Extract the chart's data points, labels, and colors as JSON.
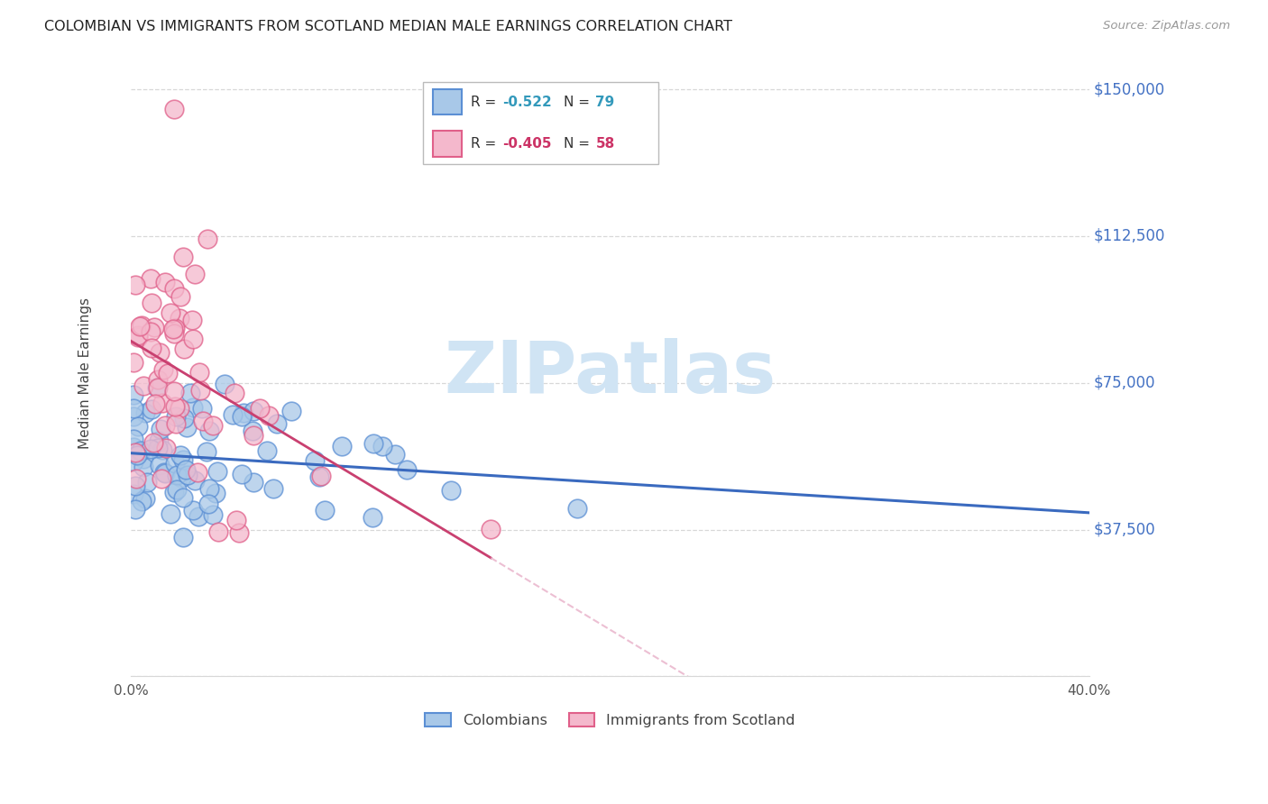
{
  "title": "COLOMBIAN VS IMMIGRANTS FROM SCOTLAND MEDIAN MALE EARNINGS CORRELATION CHART",
  "source": "Source: ZipAtlas.com",
  "ylabel": "Median Male Earnings",
  "R_colombian": -0.522,
  "N_colombian": 79,
  "R_scotland": -0.405,
  "N_scotland": 58,
  "blue_color": "#a8c8e8",
  "blue_edge": "#5b8fd4",
  "pink_color": "#f4b8cc",
  "pink_edge": "#e0608a",
  "trend_blue": "#3a6abf",
  "trend_pink": "#c94070",
  "trend_pink_dash_color": "#e8b0c8",
  "watermark_color": "#d0e4f4",
  "ytick_color": "#4472c4",
  "title_color": "#222222",
  "source_color": "#999999",
  "grid_color": "#d8d8d8",
  "xlim": [
    0.0,
    0.4
  ],
  "ylim": [
    0,
    155000
  ],
  "ytick_vals": [
    37500,
    75000,
    112500,
    150000
  ],
  "ytick_labels": [
    "$37,500",
    "$75,000",
    "$112,500",
    "$150,000"
  ],
  "xtick_vals": [
    0.0,
    0.05,
    0.1,
    0.15,
    0.2,
    0.25,
    0.3,
    0.35,
    0.4
  ],
  "xtick_labels": [
    "0.0%",
    "",
    "",
    "",
    "",
    "",
    "",
    "",
    "40.0%"
  ]
}
